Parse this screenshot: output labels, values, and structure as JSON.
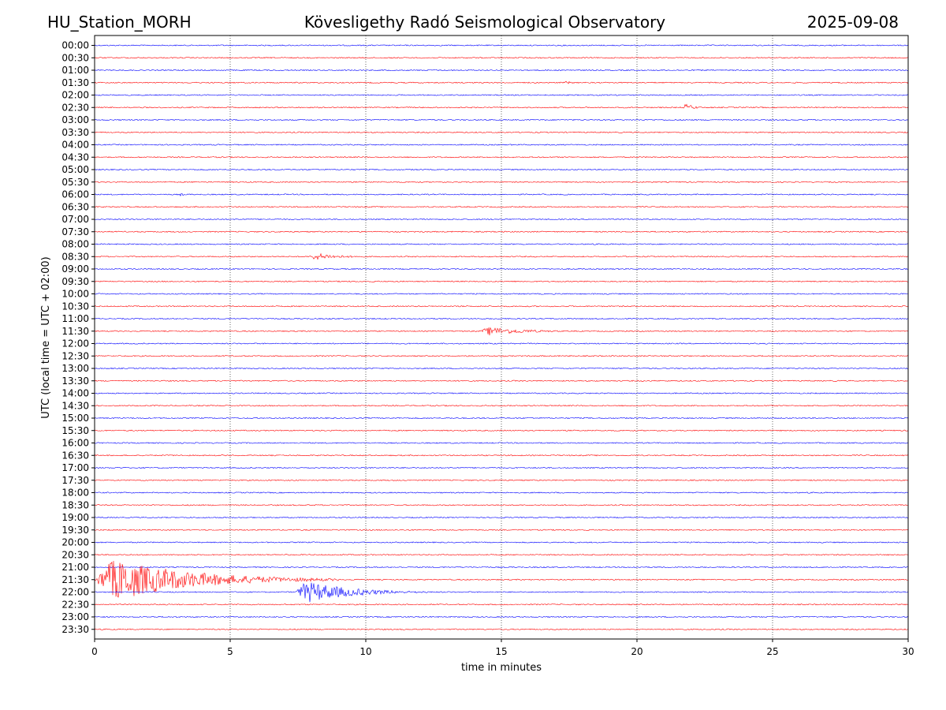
{
  "header": {
    "station": "HU_Station_MORH",
    "observatory": "Kövesligethy Radó Seismological Observatory",
    "date": "2025-09-08"
  },
  "chart_data": {
    "type": "line",
    "xlabel": "time in minutes",
    "ylabel": "UTC (local time = UTC + 02:00)",
    "xlim": [
      0,
      30
    ],
    "xticks": [
      0,
      5,
      10,
      15,
      20,
      25,
      30
    ],
    "x_grid": "dotted",
    "rows": [
      "00:00",
      "00:30",
      "01:00",
      "01:30",
      "02:00",
      "02:30",
      "03:00",
      "03:30",
      "04:00",
      "04:30",
      "05:00",
      "05:30",
      "06:00",
      "06:30",
      "07:00",
      "07:30",
      "08:00",
      "08:30",
      "09:00",
      "09:30",
      "10:00",
      "10:30",
      "11:00",
      "11:30",
      "12:00",
      "12:30",
      "13:00",
      "13:30",
      "14:00",
      "14:30",
      "15:00",
      "15:30",
      "16:00",
      "16:30",
      "17:00",
      "17:30",
      "18:00",
      "18:30",
      "19:00",
      "19:30",
      "20:00",
      "20:30",
      "21:00",
      "21:30",
      "22:00",
      "22:30",
      "23:00",
      "23:30"
    ],
    "row_colors": [
      "#0000ff",
      "#ff0000"
    ],
    "events": [
      {
        "row": "01:30",
        "start_min": 17.3,
        "end_min": 18.3,
        "amplitude": 2.5
      },
      {
        "row": "02:30",
        "start_min": 21.7,
        "end_min": 22.8,
        "amplitude": 6
      },
      {
        "row": "06:00",
        "start_min": 3.1,
        "end_min": 3.6,
        "amplitude": 3
      },
      {
        "row": "08:30",
        "start_min": 7.9,
        "end_min": 10.8,
        "amplitude": 6
      },
      {
        "row": "11:30",
        "start_min": 14.2,
        "end_min": 18.5,
        "amplitude": 7
      },
      {
        "row": "15:00",
        "start_min": 11.1,
        "end_min": 11.6,
        "amplitude": 2
      },
      {
        "row": "21:30",
        "start_min": 0.0,
        "end_min": 9.0,
        "amplitude": 35
      },
      {
        "row": "22:00",
        "start_min": 7.4,
        "end_min": 12.6,
        "amplitude": 18
      }
    ]
  }
}
